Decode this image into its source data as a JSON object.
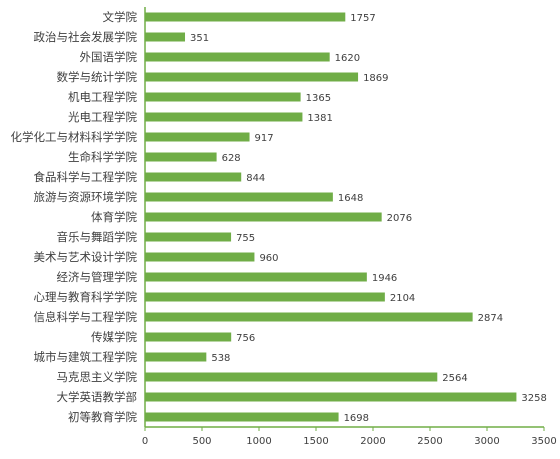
{
  "chart_data": {
    "type": "bar",
    "orientation": "horizontal",
    "categories": [
      "文学院",
      "政治与社会发展学院",
      "外国语学院",
      "数学与统计学院",
      "机电工程学院",
      "光电工程学院",
      "化学化工与材料科学学院",
      "生命科学学院",
      "食品科学与工程学院",
      "旅游与资源环境学院",
      "体育学院",
      "音乐与舞蹈学院",
      "美术与艺术设计学院",
      "经济与管理学院",
      "心理与教育科学学院",
      "信息科学与工程学院",
      "传媒学院",
      "城市与建筑工程学院",
      "马克思主义学院",
      "大学英语教学部",
      "初等教育学院"
    ],
    "values": [
      1757,
      351,
      1620,
      1869,
      1365,
      1381,
      917,
      628,
      844,
      1648,
      2076,
      755,
      960,
      1946,
      2104,
      2874,
      756,
      538,
      2564,
      3258,
      1698
    ],
    "value_labels": [
      "1757",
      "351",
      "1620",
      "1869",
      "1365",
      "1381",
      "917",
      "628",
      "844",
      "1648",
      "2076",
      "755",
      "960",
      "1946",
      "2104",
      "2874",
      "756",
      "538",
      "2564",
      "3258",
      "1698"
    ],
    "title": "",
    "xlabel": "",
    "ylabel": "",
    "xlim": [
      0,
      3500
    ],
    "x_ticks": [
      0,
      500,
      1000,
      1500,
      2000,
      2500,
      3000,
      3500
    ],
    "x_tick_labels": [
      "0",
      "500",
      "1000",
      "1500",
      "2000",
      "2500",
      "3000",
      "3500"
    ],
    "grid": false,
    "legend": "none",
    "colors": {
      "bar": "#70ad47",
      "axis": "#70ad47",
      "text": "#404040",
      "label_text": "#404040"
    }
  }
}
